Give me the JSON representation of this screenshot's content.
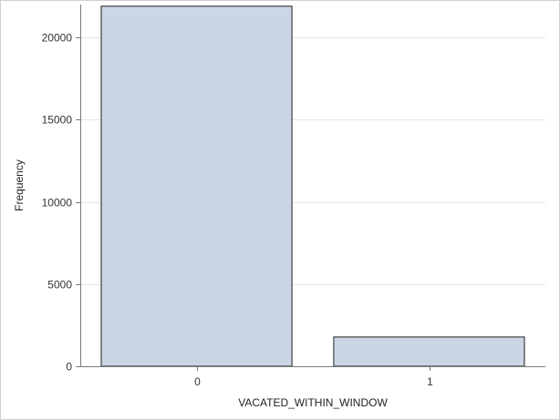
{
  "chart_data": {
    "type": "bar",
    "categories": [
      "0",
      "1"
    ],
    "values": [
      21900,
      1780
    ],
    "xlabel": "VACATED_WITHIN_WINDOW",
    "ylabel": "Frequency",
    "ylim": [
      0,
      22000
    ],
    "yticks": [
      0,
      5000,
      10000,
      15000,
      20000
    ],
    "ytick_labels": [
      "0",
      "5000",
      "10000",
      "15000",
      "20000"
    ],
    "grid": true,
    "colors": {
      "bar_fill": "#cad5e5",
      "bar_stroke": "#1f1f1f",
      "grid": "#e6e6e6",
      "axis": "#7a7a7a"
    }
  }
}
